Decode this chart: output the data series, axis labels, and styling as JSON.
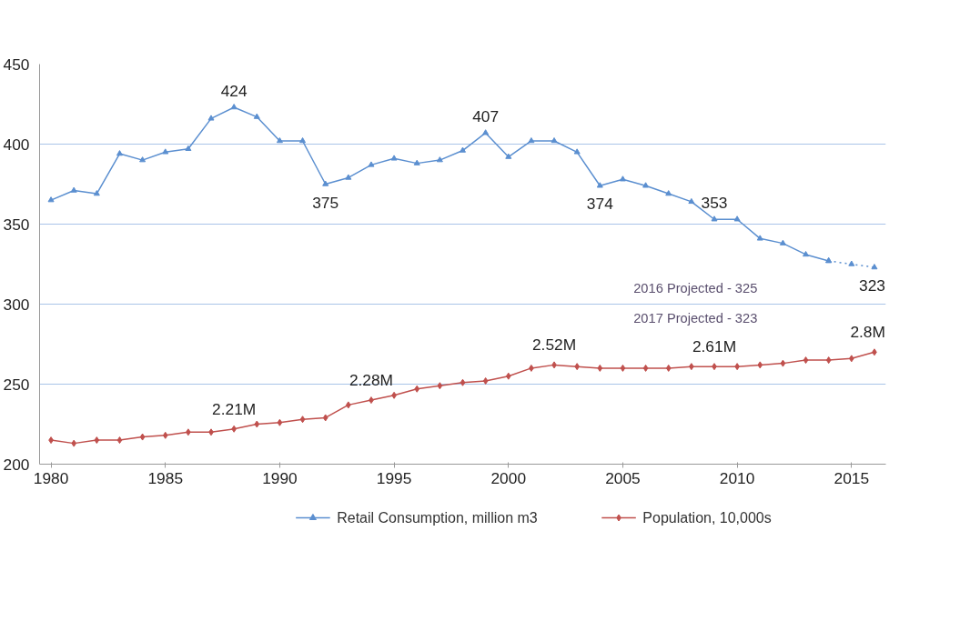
{
  "chart_data": {
    "type": "line",
    "x": [
      1980,
      1981,
      1982,
      1983,
      1984,
      1985,
      1986,
      1987,
      1988,
      1989,
      1990,
      1991,
      1992,
      1993,
      1994,
      1995,
      1996,
      1997,
      1998,
      1999,
      2000,
      2001,
      2002,
      2003,
      2004,
      2005,
      2006,
      2007,
      2008,
      2009,
      2010,
      2011,
      2012,
      2013,
      2014,
      2015,
      2016
    ],
    "series": [
      {
        "name": "Retail Consumption, million m3",
        "color": "#5b8fd0",
        "marker": "triangle",
        "line_style": "solid",
        "values": [
          365,
          371,
          369,
          394,
          390,
          395,
          397,
          416,
          423,
          417,
          402,
          402,
          375,
          379,
          387,
          391,
          388,
          390,
          396,
          407,
          392,
          402,
          402,
          395,
          374,
          378,
          374,
          369,
          364,
          353,
          353,
          341,
          338,
          331,
          327,
          null,
          null
        ]
      },
      {
        "color": "#5b8fd0",
        "marker": "triangle",
        "line_style": "dotted",
        "values": [
          null,
          null,
          null,
          null,
          null,
          null,
          null,
          null,
          null,
          null,
          null,
          null,
          null,
          null,
          null,
          null,
          null,
          null,
          null,
          null,
          null,
          null,
          null,
          null,
          null,
          null,
          null,
          null,
          null,
          null,
          null,
          null,
          null,
          null,
          327,
          325,
          323
        ]
      },
      {
        "name": "Population, 10,000s",
        "color": "#c0504d",
        "marker": "diamond",
        "line_style": "solid",
        "values": [
          215,
          213,
          215,
          215,
          217,
          218,
          220,
          220,
          222,
          225,
          226,
          228,
          229,
          237,
          240,
          243,
          247,
          249,
          251,
          252,
          255,
          260,
          262,
          261,
          260,
          260,
          260,
          260,
          261,
          261,
          261,
          262,
          263,
          265,
          265,
          266,
          270
        ]
      }
    ],
    "xlim": [
      1979.5,
      2016.5
    ],
    "xticks": [
      1980,
      1985,
      1990,
      1995,
      2000,
      2005,
      2010,
      2015
    ],
    "ylim": [
      200,
      450
    ],
    "yticks": [
      200,
      250,
      300,
      350,
      400,
      450
    ],
    "grid": "y",
    "legend": "bottom",
    "annotations": [
      {
        "text": "424",
        "x": 1988,
        "y": 423
      },
      {
        "text": "375",
        "x": 1992,
        "y": 375
      },
      {
        "text": "407",
        "x": 1999,
        "y": 407
      },
      {
        "text": "374",
        "x": 2004,
        "y": 374
      },
      {
        "text": "353",
        "x": 2009,
        "y": 353
      },
      {
        "text": "323",
        "x": 2016,
        "y": 323
      },
      {
        "text": "2.21M",
        "x": 1988,
        "y": 222
      },
      {
        "text": "2.28M",
        "x": 1994,
        "y": 240
      },
      {
        "text": "2.52M",
        "x": 2002,
        "y": 262
      },
      {
        "text": "2.61M",
        "x": 2009,
        "y": 261
      },
      {
        "text": "2.8M",
        "x": 2016,
        "y": 270
      },
      "2016 Projected - 325",
      "2017 Projected - 323"
    ]
  }
}
